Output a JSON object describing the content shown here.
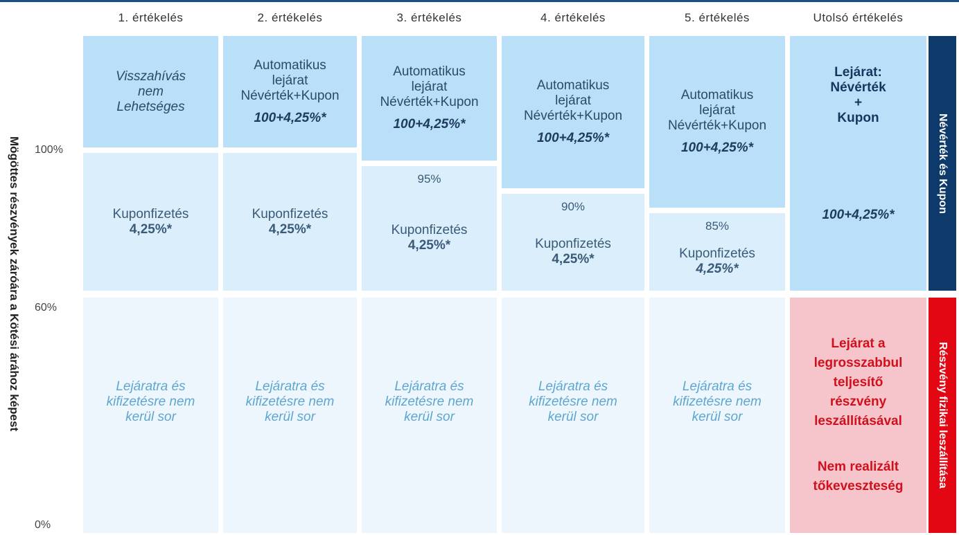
{
  "y_axis": {
    "title": "Mögöttes részvények záróára a Kötési árához képest",
    "labels": [
      "100%",
      "60%",
      "0%"
    ]
  },
  "columns": [
    {
      "header": "1. értékelés",
      "top": {
        "lines": [
          "Visszahívás",
          "nem",
          "Lehetséges"
        ]
      },
      "middle": {
        "lines": [
          "Kuponfizetés",
          "4,25%*"
        ]
      },
      "bottom": {
        "lines": [
          "Lejáratra és",
          "kifizetésre nem",
          "kerül sor"
        ]
      }
    },
    {
      "header": "2. értékelés",
      "top": {
        "lines": [
          "Automatikus",
          "lejárat",
          "Névérték+Kupon"
        ],
        "payout": "100+4,25%*"
      },
      "middle": {
        "lines": [
          "Kuponfizetés",
          "4,25%*"
        ]
      },
      "bottom": {
        "lines": [
          "Lejáratra és",
          "kifizetésre nem",
          "kerül sor"
        ]
      }
    },
    {
      "header": "3. értékelés",
      "top": {
        "lines": [
          "Automatikus",
          "lejárat",
          "Névérték+Kupon"
        ],
        "payout": "100+4,25%*"
      },
      "middle": {
        "barrier": "95%",
        "lines": [
          "Kuponfizetés",
          "4,25%*"
        ]
      },
      "bottom": {
        "lines": [
          "Lejáratra és",
          "kifizetésre nem",
          "kerül sor"
        ]
      }
    },
    {
      "header": "4. értékelés",
      "top": {
        "lines": [
          "Automatikus",
          "lejárat",
          "Névérték+Kupon"
        ],
        "payout": "100+4,25%*"
      },
      "middle": {
        "barrier": "90%",
        "lines": [
          "Kuponfizetés",
          "4,25%*"
        ]
      },
      "bottom": {
        "lines": [
          "Lejáratra és",
          "kifizetésre nem",
          "kerül sor"
        ]
      }
    },
    {
      "header": "5. értékelés",
      "top": {
        "lines": [
          "Automatikus",
          "lejárat",
          "Névérték+Kupon"
        ],
        "payout": "100+4,25%*"
      },
      "middle": {
        "barrier": "85%",
        "lines": [
          "Kuponfizetés",
          "4,25%*"
        ]
      },
      "bottom": {
        "lines": [
          "Lejáratra és",
          "kifizetésre nem",
          "kerül sor"
        ]
      }
    },
    {
      "header": "Utolsó értékelés",
      "top": {
        "lines": [
          "Lejárat:",
          "Névérték",
          "+",
          "Kupon"
        ],
        "payout": "100+4,25%*"
      },
      "bottom": {
        "lines": [
          "Lejárat a",
          "legrosszabbul",
          "teljesítő",
          "részvény",
          "leszállításával"
        ],
        "note": [
          "Nem realizált",
          "tőkeveszteség"
        ]
      }
    }
  ],
  "side_labels": [
    "Névérték és Kupon",
    "Részvény fizikai leszállítása"
  ]
}
